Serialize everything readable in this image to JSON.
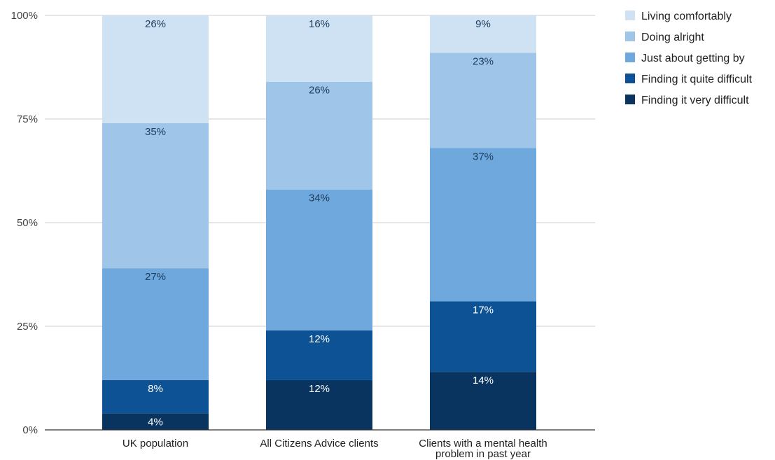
{
  "chart_data": {
    "type": "bar",
    "stacked": true,
    "categories": [
      [
        "UK population"
      ],
      [
        "All Citizens Advice clients"
      ],
      [
        "Clients with a mental health",
        "problem in past year"
      ]
    ],
    "series": [
      {
        "name": "Finding it very difficult",
        "color": "#08345f",
        "label_color": "#ffffff",
        "values": [
          4,
          12,
          14
        ]
      },
      {
        "name": "Finding it quite difficult",
        "color": "#0d5295",
        "label_color": "#ffffff",
        "values": [
          8,
          12,
          17
        ]
      },
      {
        "name": "Just about getting by",
        "color": "#6fa8dc",
        "label_color": "#1c3d5e",
        "values": [
          27,
          34,
          37
        ]
      },
      {
        "name": "Doing alright",
        "color": "#9fc5e8",
        "label_color": "#1c3d5e",
        "values": [
          35,
          26,
          23
        ]
      },
      {
        "name": "Living comfortably",
        "color": "#cfe2f3",
        "label_color": "#1c3d5e",
        "values": [
          26,
          16,
          9
        ]
      }
    ],
    "value_labels": [
      [
        "4%",
        "12%",
        "14%"
      ],
      [
        "8%",
        "12%",
        "17%"
      ],
      [
        "27%",
        "34%",
        "37%"
      ],
      [
        "35%",
        "26%",
        "23%"
      ],
      [
        "26%",
        "16%",
        "9%"
      ]
    ],
    "legend_order": [
      "Living comfortably",
      "Doing alright",
      "Just about getting by",
      "Finding it quite difficult",
      "Finding it very difficult"
    ],
    "y_ticks": [
      0,
      25,
      50,
      75,
      100
    ],
    "y_tick_labels": [
      "0%",
      "25%",
      "50%",
      "75%",
      "100%"
    ],
    "ylim": [
      0,
      100
    ],
    "grid": true,
    "legend_position": "top-right",
    "title": "",
    "xlabel": "",
    "ylabel": ""
  }
}
